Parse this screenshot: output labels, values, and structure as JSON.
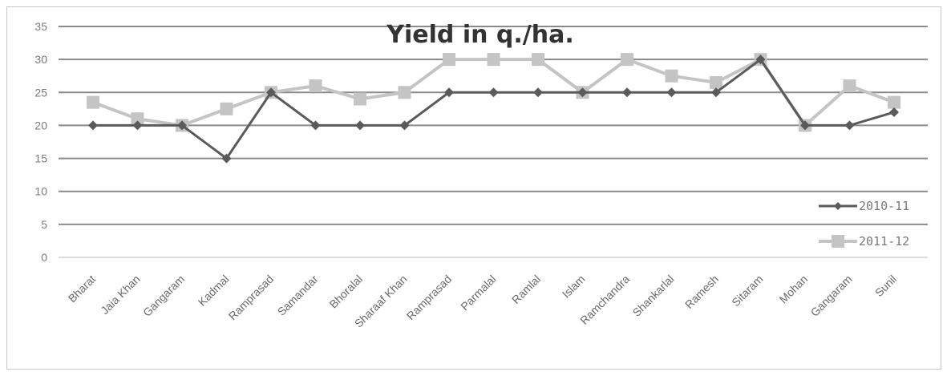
{
  "chart_data": {
    "type": "line",
    "title": "Yield in q./ha.",
    "xlabel": "",
    "ylabel": "",
    "ylim": [
      0,
      35
    ],
    "yticks": [
      0,
      5,
      10,
      15,
      20,
      25,
      30,
      35
    ],
    "grid": "horizontal",
    "legend_position": "right",
    "categories": [
      "Bharat",
      "Jaia Khan",
      "Gangaram",
      "Kadmal",
      "Ramprasad",
      "Samandar",
      "Bhoralal",
      "Sharaaf Khan",
      "Ramprasad",
      "Parmalal",
      "Ramlal",
      "Islam",
      "Ramchandra",
      "Shankarlal",
      "Ramesh",
      "Sitaram",
      "Mohan",
      "Gangaram",
      "Sunil"
    ],
    "series": [
      {
        "name": "2010-11",
        "color": "#5a5a5a",
        "marker": "diamond",
        "values": [
          20,
          20,
          20,
          15,
          25,
          20,
          20,
          20,
          25,
          25,
          25,
          25,
          25,
          25,
          25,
          30,
          20,
          20,
          22
        ]
      },
      {
        "name": "2011-12",
        "color": "#c4c4c4",
        "marker": "square",
        "values": [
          23.5,
          21,
          20,
          22.5,
          25,
          26,
          24,
          25,
          30,
          30,
          30,
          25,
          30,
          27.5,
          26.5,
          30,
          20,
          26,
          23.5
        ]
      }
    ]
  }
}
